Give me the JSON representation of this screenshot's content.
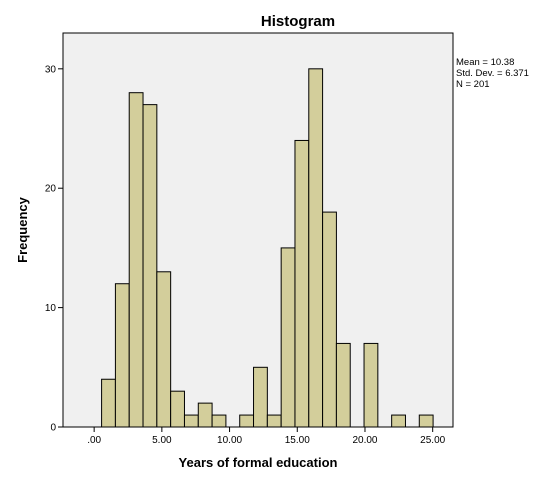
{
  "chart_data": {
    "type": "bar",
    "title": "Histogram",
    "xlabel": "Years of formal education",
    "ylabel": "Frequency",
    "xlim": [
      -2.3,
      26.5
    ],
    "ylim": [
      0,
      33
    ],
    "x_ticks": [
      0,
      5,
      10,
      15,
      20,
      25
    ],
    "x_tick_labels": [
      ".00",
      "5.00",
      "10.00",
      "15.00",
      "20.00",
      "25.00"
    ],
    "y_ticks": [
      0,
      10,
      20,
      30
    ],
    "y_tick_labels": [
      "0",
      "10",
      "20",
      "30"
    ],
    "bin_width": 1.02,
    "bin_start": 0.55,
    "values": [
      4,
      12,
      28,
      27,
      13,
      3,
      1,
      2,
      1,
      0,
      1,
      5,
      1,
      15,
      24,
      30,
      18,
      7,
      0,
      7,
      0,
      1,
      0,
      1
    ],
    "grid": false,
    "bar_color": "#d3ce9b",
    "bar_edge_color": "#000000",
    "plot_background": "#f0f0f0",
    "stats": {
      "mean": "Mean = 10.38",
      "std_dev": "Std. Dev. = 6.371",
      "n": "N = 201"
    }
  }
}
